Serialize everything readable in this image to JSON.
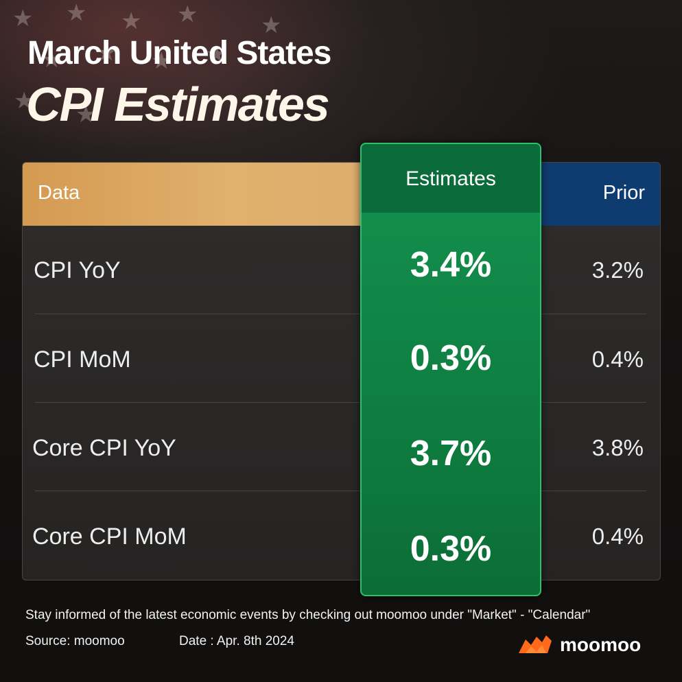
{
  "header": {
    "title_line1": "March United States",
    "title_line2": "CPI Estimates"
  },
  "table": {
    "col_data": "Data",
    "col_estimates": "Estimates",
    "col_prior": "Prior",
    "rows": [
      {
        "label": "CPI YoY",
        "estimate": "3.4%",
        "prior": "3.2%"
      },
      {
        "label": "CPI MoM",
        "estimate": "0.3%",
        "prior": "0.4%"
      },
      {
        "label": "Core CPI YoY",
        "estimate": "3.7%",
        "prior": "3.8%"
      },
      {
        "label": "Core CPI MoM",
        "estimate": "0.3%",
        "prior": "0.4%"
      }
    ]
  },
  "footer": {
    "note": "Stay informed of the latest economic events by checking out moomoo under \"Market\" - \"Calendar\"",
    "source": "Source: moomoo",
    "date": "Date : Apr. 8th 2024",
    "brand": "moomoo",
    "brand_icon": "moomoo-bull-icon"
  },
  "colors": {
    "data_header": "#d9a55f",
    "estimates_column": "#12884a",
    "prior_header": "#0f3c70",
    "brand_orange": "#ff6a1a"
  }
}
